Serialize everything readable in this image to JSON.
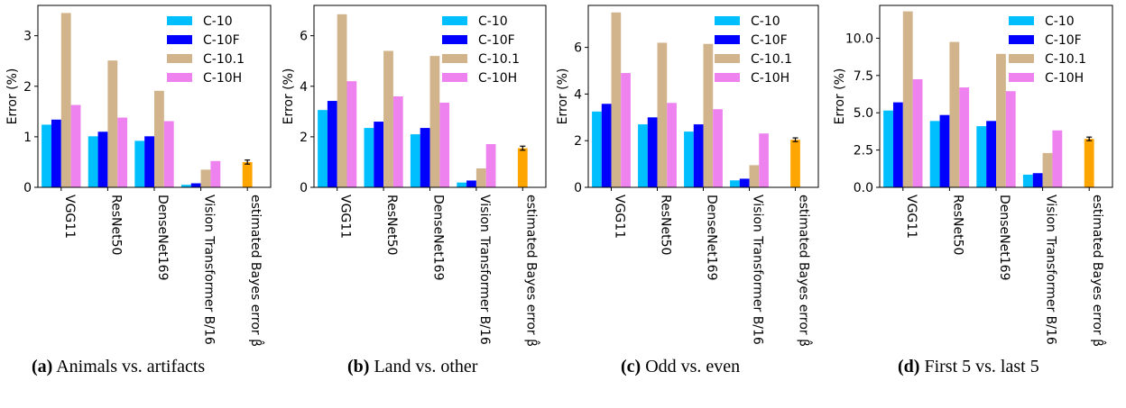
{
  "colors": {
    "C-10": "#00bfff",
    "C-10F": "#0000ff",
    "C-10.1": "#d2b48c",
    "C-10H": "#ee82ee",
    "bayes": "#ffa500",
    "errorbar": "#000000"
  },
  "chart_data": [
    {
      "type": "bar",
      "ylabel": "Error (%)",
      "ylim": [
        0,
        3.6
      ],
      "yticks": [
        0,
        1,
        2,
        3
      ],
      "ytick_labels": [
        "0",
        "1",
        "2",
        "3"
      ],
      "categories": [
        "VGG11",
        "ResNet50",
        "DenseNet169",
        "Vision Transformer B/16",
        "estimated Bayes error β̂"
      ],
      "legend_position": "top-right",
      "series": [
        {
          "name": "C-10",
          "values": [
            1.24,
            1.01,
            0.92,
            0.05,
            null
          ]
        },
        {
          "name": "C-10F",
          "values": [
            1.34,
            1.1,
            1.01,
            0.08,
            null
          ]
        },
        {
          "name": "C-10.1",
          "values": [
            3.45,
            2.51,
            1.91,
            0.35,
            null
          ]
        },
        {
          "name": "C-10H",
          "values": [
            1.63,
            1.38,
            1.31,
            0.52,
            null
          ]
        }
      ],
      "bayes": {
        "value": 0.5,
        "err": 0.04
      },
      "caption_label": "(a)",
      "caption_text": "Animals vs. artifacts"
    },
    {
      "type": "bar",
      "ylabel": "Error (%)",
      "ylim": [
        0,
        7.2
      ],
      "yticks": [
        0,
        2,
        4,
        6
      ],
      "ytick_labels": [
        "0",
        "2",
        "4",
        "6"
      ],
      "categories": [
        "VGG11",
        "ResNet50",
        "DenseNet169",
        "Vision Transformer B/16",
        "estimated Bayes error β̂"
      ],
      "legend_position": "top-right",
      "series": [
        {
          "name": "C-10",
          "values": [
            3.06,
            2.35,
            2.1,
            0.19,
            null
          ]
        },
        {
          "name": "C-10F",
          "values": [
            3.42,
            2.6,
            2.35,
            0.27,
            null
          ]
        },
        {
          "name": "C-10.1",
          "values": [
            6.85,
            5.4,
            5.2,
            0.75,
            null
          ]
        },
        {
          "name": "C-10H",
          "values": [
            4.2,
            3.6,
            3.35,
            1.71,
            null
          ]
        }
      ],
      "bayes": {
        "value": 1.55,
        "err": 0.08
      },
      "caption_label": "(b)",
      "caption_text": "Land vs. other"
    },
    {
      "type": "bar",
      "ylabel": "Error (%)",
      "ylim": [
        0,
        7.8
      ],
      "yticks": [
        0,
        2,
        4,
        6
      ],
      "ytick_labels": [
        "0",
        "2",
        "4",
        "6"
      ],
      "categories": [
        "VGG11",
        "ResNet50",
        "DenseNet169",
        "Vision Transformer B/16",
        "estimated Bayes error β̂"
      ],
      "legend_position": "top-right",
      "series": [
        {
          "name": "C-10",
          "values": [
            3.25,
            2.7,
            2.39,
            0.3,
            null
          ]
        },
        {
          "name": "C-10F",
          "values": [
            3.58,
            3.0,
            2.7,
            0.37,
            null
          ]
        },
        {
          "name": "C-10.1",
          "values": [
            7.5,
            6.2,
            6.15,
            0.95,
            null
          ]
        },
        {
          "name": "C-10H",
          "values": [
            4.9,
            3.62,
            3.35,
            2.31,
            null
          ]
        }
      ],
      "bayes": {
        "value": 2.04,
        "err": 0.08
      },
      "caption_label": "(c)",
      "caption_text": "Odd vs. even"
    },
    {
      "type": "bar",
      "ylabel": "Error (%)",
      "ylim": [
        0,
        12.2
      ],
      "yticks": [
        0,
        2.5,
        5,
        7.5,
        10
      ],
      "ytick_labels": [
        "0.0",
        "2.5",
        "5.0",
        "7.5",
        "10.0"
      ],
      "categories": [
        "VGG11",
        "ResNet50",
        "DenseNet169",
        "Vision Transformer B/16",
        "estimated Bayes error β̂"
      ],
      "legend_position": "top-right",
      "series": [
        {
          "name": "C-10",
          "values": [
            5.15,
            4.45,
            4.1,
            0.85,
            null
          ]
        },
        {
          "name": "C-10F",
          "values": [
            5.7,
            4.85,
            4.45,
            0.95,
            null
          ]
        },
        {
          "name": "C-10.1",
          "values": [
            11.8,
            9.75,
            8.95,
            2.3,
            null
          ]
        },
        {
          "name": "C-10H",
          "values": [
            7.25,
            6.7,
            6.45,
            3.82,
            null
          ]
        }
      ],
      "bayes": {
        "value": 3.25,
        "err": 0.12
      },
      "caption_label": "(d)",
      "caption_text": "First 5 vs. last 5"
    }
  ]
}
